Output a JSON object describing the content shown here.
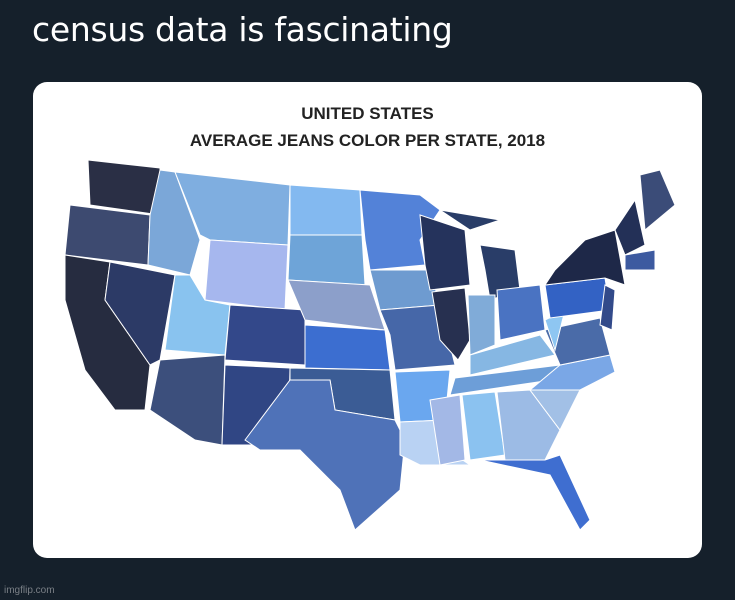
{
  "tweet": {
    "text": "census data is fascinating"
  },
  "map": {
    "title_line1": "UNITED STATES",
    "title_line2": "AVERAGE JEANS COLOR PER STATE, 2018"
  },
  "watermark": "imgflip.com"
}
